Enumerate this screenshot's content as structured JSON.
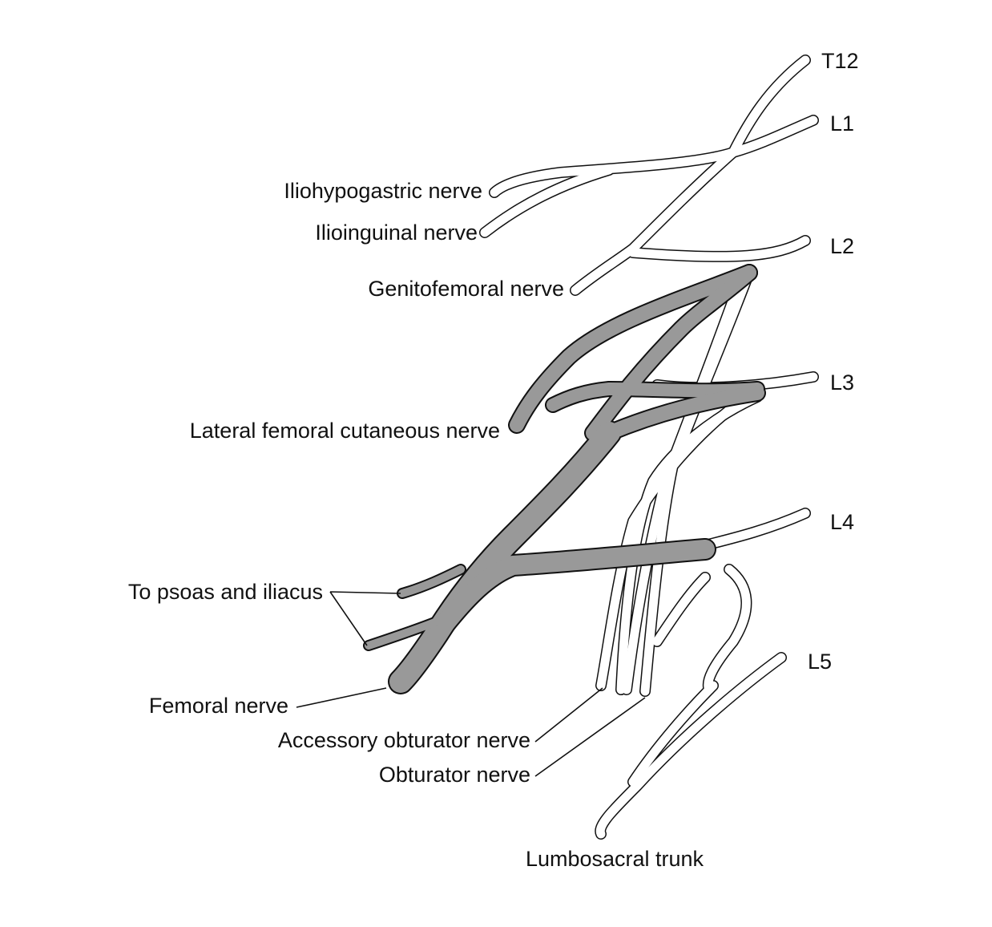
{
  "roots": {
    "t12": "T12",
    "l1": "L1",
    "l2": "L2",
    "l3": "L3",
    "l4": "L4",
    "l5": "L5"
  },
  "nerves": {
    "iliohypogastric": "Iliohypogastric nerve",
    "ilioinguinal": "Ilioinguinal nerve",
    "genitofemoral": "Genitofemoral nerve",
    "lateral_femoral_cutaneous": "Lateral femoral cutaneous nerve",
    "to_psoas_iliacus": "To psoas and iliacus",
    "femoral": "Femoral nerve",
    "accessory_obturator": "Accessory obturator nerve",
    "obturator": "Obturator nerve",
    "lumbosacral_trunk": "Lumbosacral trunk"
  },
  "colors": {
    "femoral_fill": "#999999",
    "other_fill": "#ffffff",
    "outline": "#111111"
  }
}
